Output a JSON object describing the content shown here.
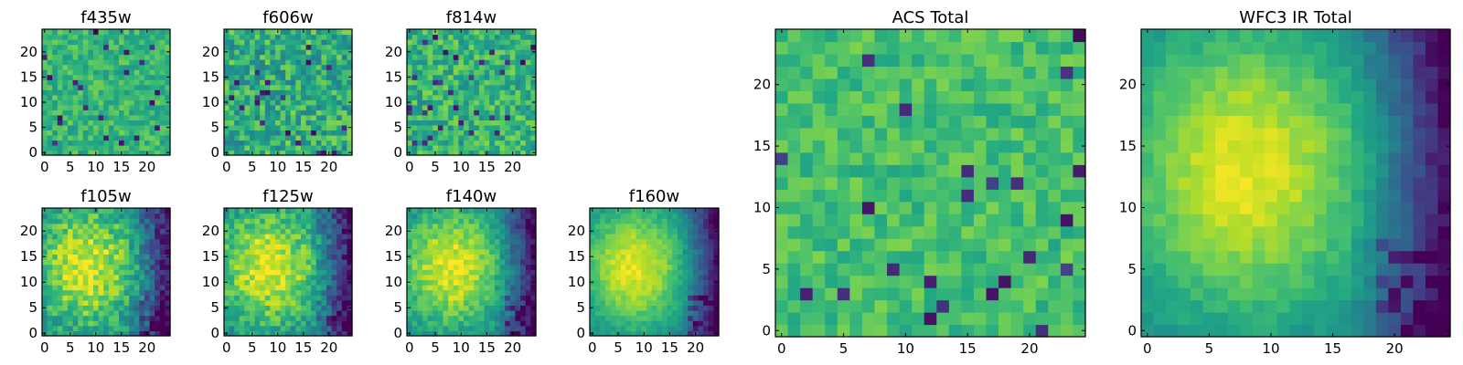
{
  "chart_data": [
    {
      "type": "heatmap",
      "title": "f435w",
      "colormap": "viridis",
      "grid": false,
      "xlim": [
        -0.5,
        24.5
      ],
      "ylim": [
        -0.5,
        24.5
      ],
      "xticks": [
        "0",
        "5",
        "10",
        "15",
        "20"
      ],
      "yticks": [
        "0",
        "5",
        "10",
        "15",
        "20"
      ],
      "texture": "noise",
      "mean": 0.66,
      "spread": 0.13
    },
    {
      "type": "heatmap",
      "title": "f606w",
      "colormap": "viridis",
      "grid": false,
      "xlim": [
        -0.5,
        24.5
      ],
      "ylim": [
        -0.5,
        24.5
      ],
      "xticks": [
        "0",
        "5",
        "10",
        "15",
        "20"
      ],
      "yticks": [
        "0",
        "5",
        "10",
        "15",
        "20"
      ],
      "texture": "noise",
      "mean": 0.62,
      "spread": 0.2
    },
    {
      "type": "heatmap",
      "title": "f814w",
      "colormap": "viridis",
      "grid": false,
      "xlim": [
        -0.5,
        24.5
      ],
      "ylim": [
        -0.5,
        24.5
      ],
      "xticks": [
        "0",
        "5",
        "10",
        "15",
        "20"
      ],
      "yticks": [
        "0",
        "5",
        "10",
        "15",
        "20"
      ],
      "texture": "noise",
      "mean": 0.65,
      "spread": 0.17
    },
    {
      "type": "heatmap",
      "title": "f105w",
      "colormap": "viridis",
      "grid": false,
      "xlim": [
        -0.5,
        24.5
      ],
      "ylim": [
        -0.5,
        24.5
      ],
      "xticks": [
        "0",
        "5",
        "10",
        "15",
        "20"
      ],
      "yticks": [
        "0",
        "5",
        "10",
        "15",
        "20"
      ],
      "texture": "blob",
      "mean": 0.64,
      "spread": 0.15
    },
    {
      "type": "heatmap",
      "title": "f125w",
      "colormap": "viridis",
      "grid": false,
      "xlim": [
        -0.5,
        24.5
      ],
      "ylim": [
        -0.5,
        24.5
      ],
      "xticks": [
        "0",
        "5",
        "10",
        "15",
        "20"
      ],
      "yticks": [
        "0",
        "5",
        "10",
        "15",
        "20"
      ],
      "texture": "blob",
      "mean": 0.62,
      "spread": 0.14
    },
    {
      "type": "heatmap",
      "title": "f140w",
      "colormap": "viridis",
      "grid": false,
      "xlim": [
        -0.5,
        24.5
      ],
      "ylim": [
        -0.5,
        24.5
      ],
      "xticks": [
        "0",
        "5",
        "10",
        "15",
        "20"
      ],
      "yticks": [
        "0",
        "5",
        "10",
        "15",
        "20"
      ],
      "texture": "blob",
      "mean": 0.6,
      "spread": 0.1
    },
    {
      "type": "heatmap",
      "title": "f160w",
      "colormap": "viridis",
      "grid": false,
      "xlim": [
        -0.5,
        24.5
      ],
      "ylim": [
        -0.5,
        24.5
      ],
      "xticks": [
        "0",
        "5",
        "10",
        "15",
        "20"
      ],
      "yticks": [
        "0",
        "5",
        "10",
        "15",
        "20"
      ],
      "texture": "blob",
      "mean": 0.58,
      "spread": 0.06
    },
    {
      "type": "heatmap",
      "title": "ACS Total",
      "colormap": "viridis",
      "grid": false,
      "xlim": [
        -0.5,
        24.5
      ],
      "ylim": [
        -0.5,
        24.5
      ],
      "xticks": [
        "0",
        "5",
        "10",
        "15",
        "20"
      ],
      "yticks": [
        "0",
        "5",
        "10",
        "15",
        "20"
      ],
      "texture": "noise",
      "mean": 0.7,
      "spread": 0.11
    },
    {
      "type": "heatmap",
      "title": "WFC3 IR Total",
      "colormap": "viridis",
      "grid": false,
      "xlim": [
        -0.5,
        24.5
      ],
      "ylim": [
        -0.5,
        24.5
      ],
      "xticks": [
        "0",
        "5",
        "10",
        "15",
        "20"
      ],
      "yticks": [
        "0",
        "5",
        "10",
        "15",
        "20"
      ],
      "texture": "blob",
      "mean": 0.6,
      "spread": 0.05
    }
  ]
}
